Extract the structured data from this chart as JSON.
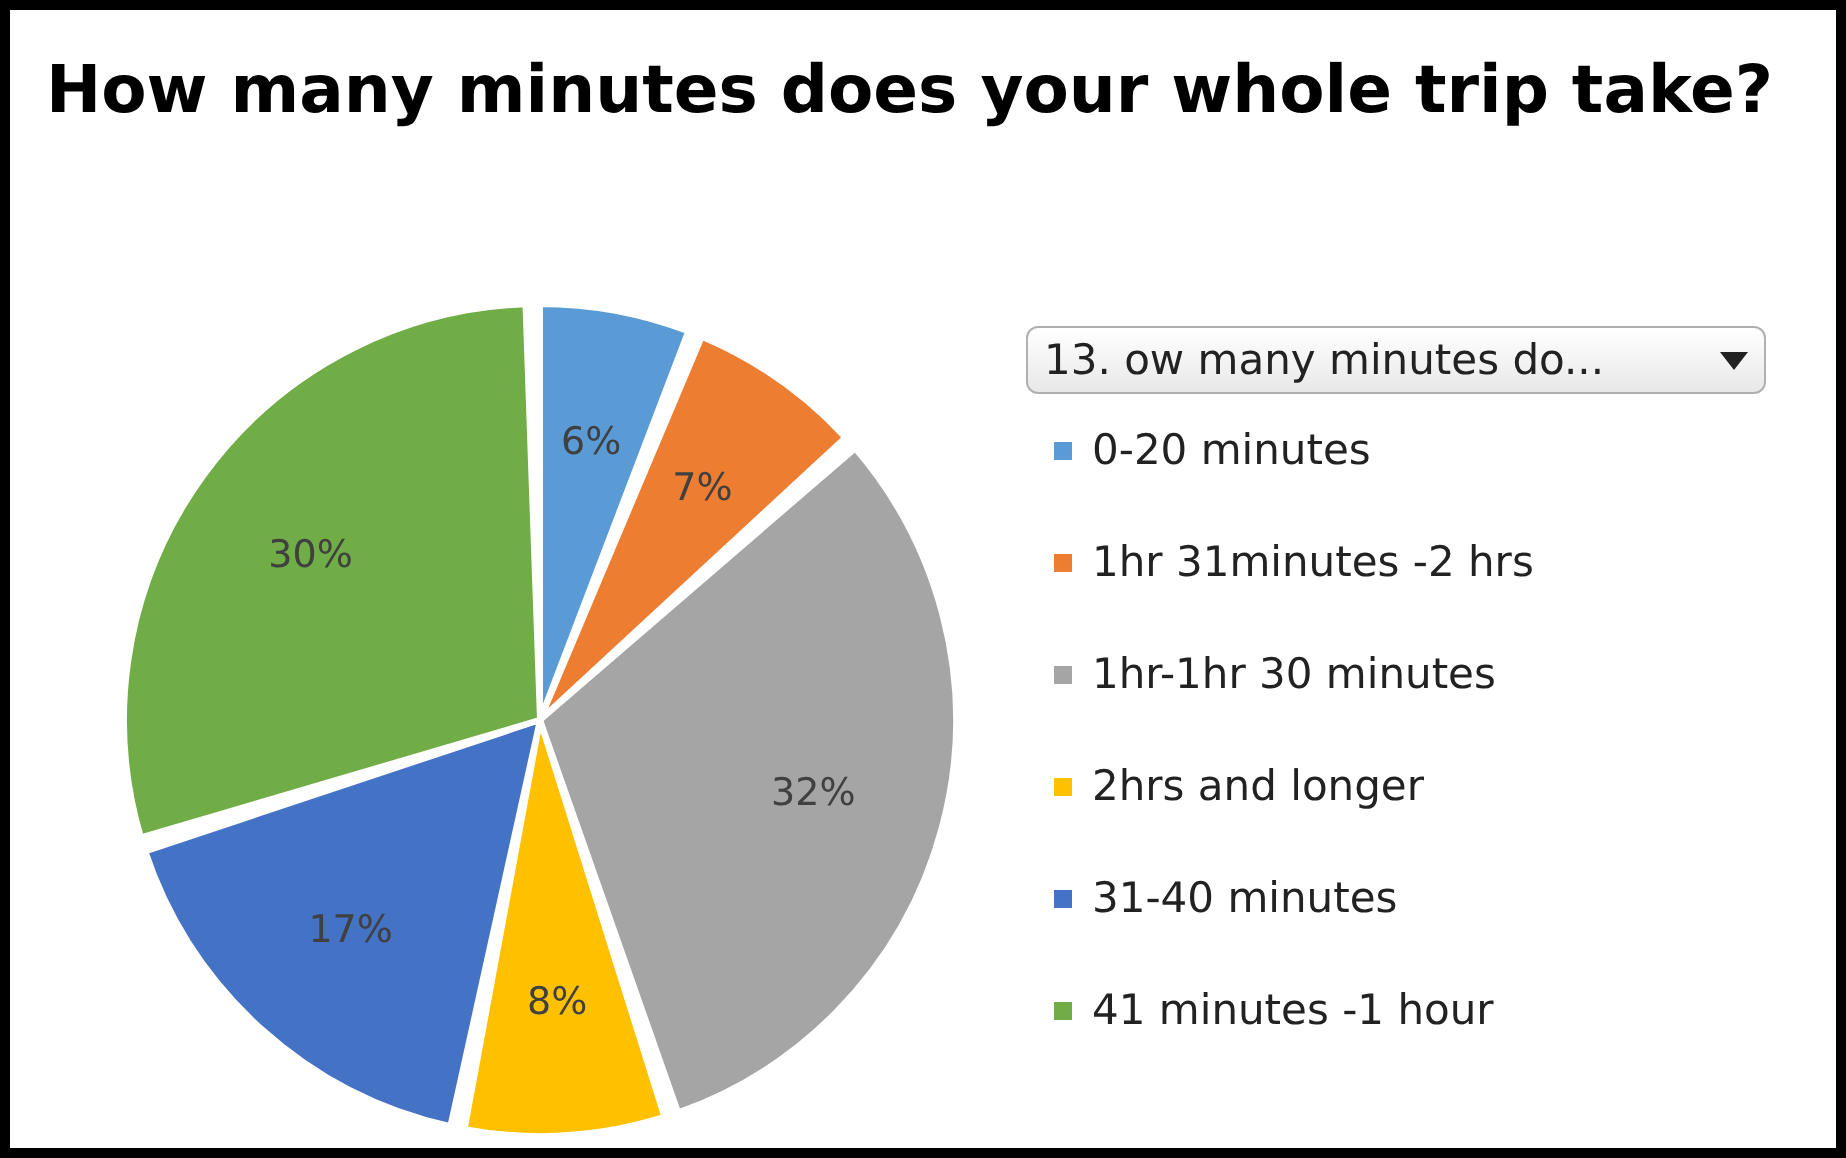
{
  "chart_data": {
    "type": "pie",
    "title": "How many minutes does your whole trip take?",
    "legend_title": "13. ow many minutes do...",
    "categories": [
      "0-20 minutes",
      "1hr 31minutes -2 hrs",
      "1hr-1hr 30 minutes",
      "2hrs and longer",
      "31-40 minutes",
      "41 minutes -1 hour"
    ],
    "values": [
      6,
      7,
      32,
      8,
      17,
      30
    ],
    "colors": [
      "#5b9bd5",
      "#ed7d31",
      "#a5a5a5",
      "#ffc000",
      "#4472c4",
      "#70ad47"
    ],
    "value_labels": [
      "6%",
      "7%",
      "32%",
      "8%",
      "17%",
      "30%"
    ],
    "legend": "right"
  }
}
